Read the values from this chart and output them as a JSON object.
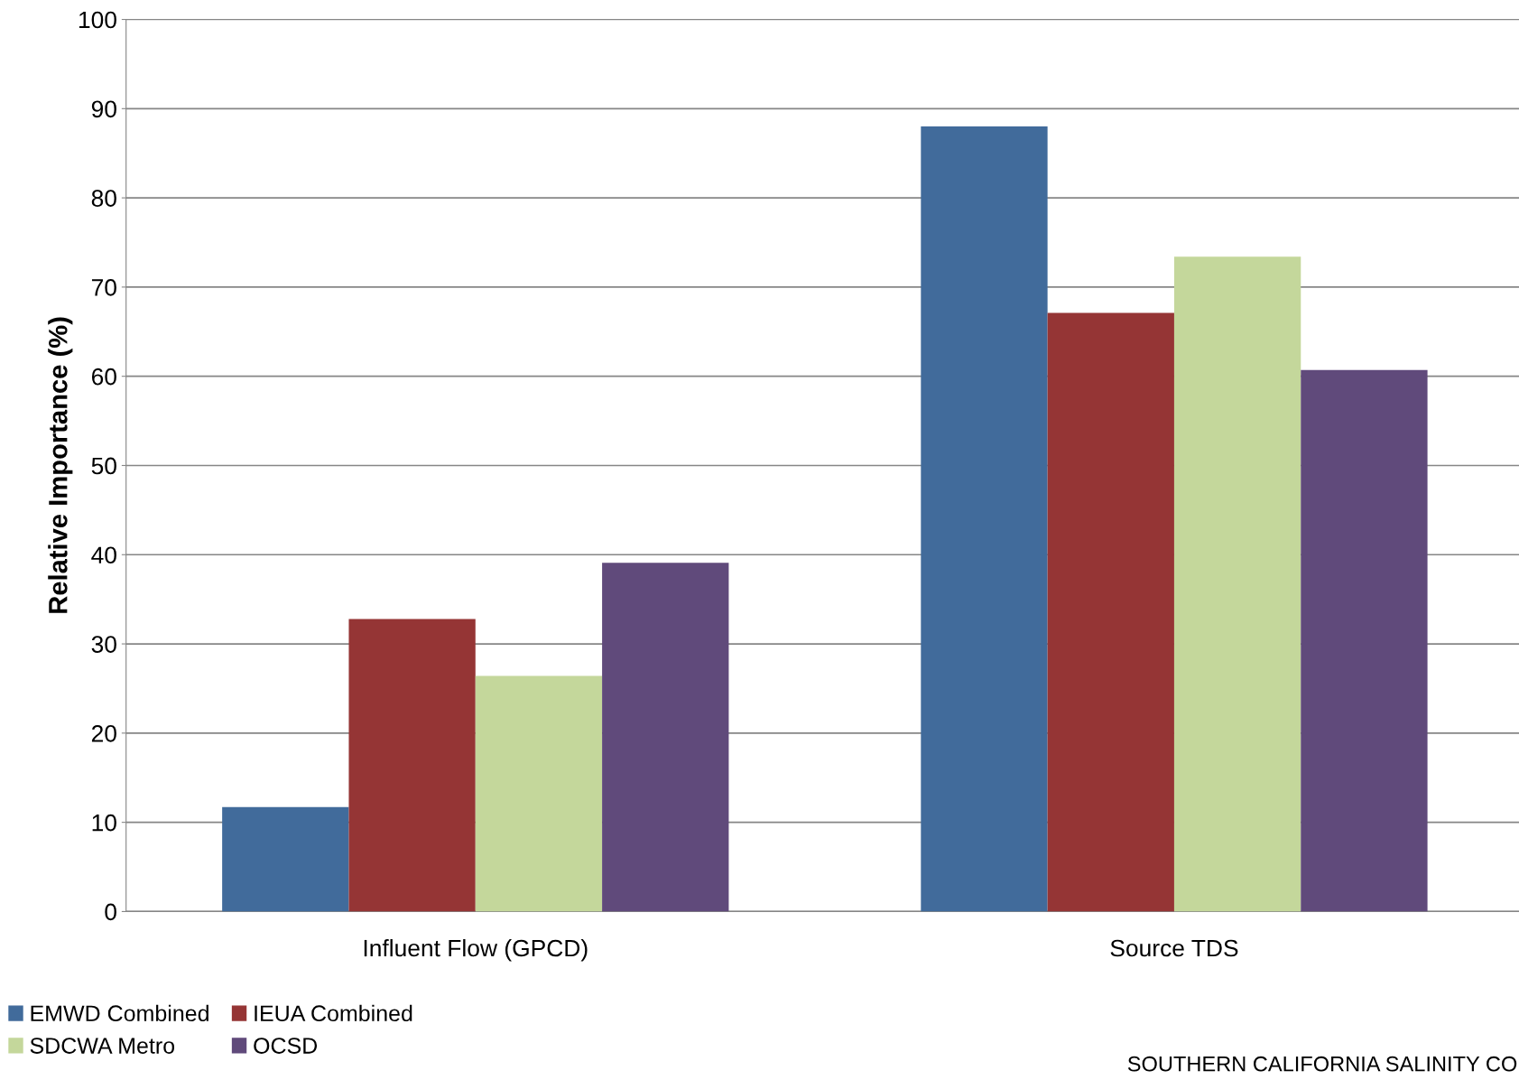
{
  "chart_data": {
    "type": "bar",
    "ylabel": "Relative Importance (%)",
    "categories": [
      "Influent Flow (GPCD)",
      "Source TDS"
    ],
    "series": [
      {
        "name": "EMWD Combined",
        "color": "#416b9b",
        "values": [
          11.7,
          88.0
        ]
      },
      {
        "name": "IEUA Combined",
        "color": "#953535",
        "values": [
          32.8,
          67.1
        ]
      },
      {
        "name": "SDCWA Metro",
        "color": "#c4d79b",
        "values": [
          26.4,
          73.4
        ]
      },
      {
        "name": "OCSD",
        "color": "#604a7b",
        "values": [
          39.1,
          60.7
        ]
      }
    ],
    "ylim": [
      0,
      100
    ],
    "yticks": [
      0,
      10,
      20,
      30,
      40,
      50,
      60,
      70,
      80,
      90,
      100
    ],
    "grid": "y",
    "legend": "bottom left",
    "annotations": [
      "SOUTHERN CALIFORNIA SALINITY CO"
    ]
  }
}
